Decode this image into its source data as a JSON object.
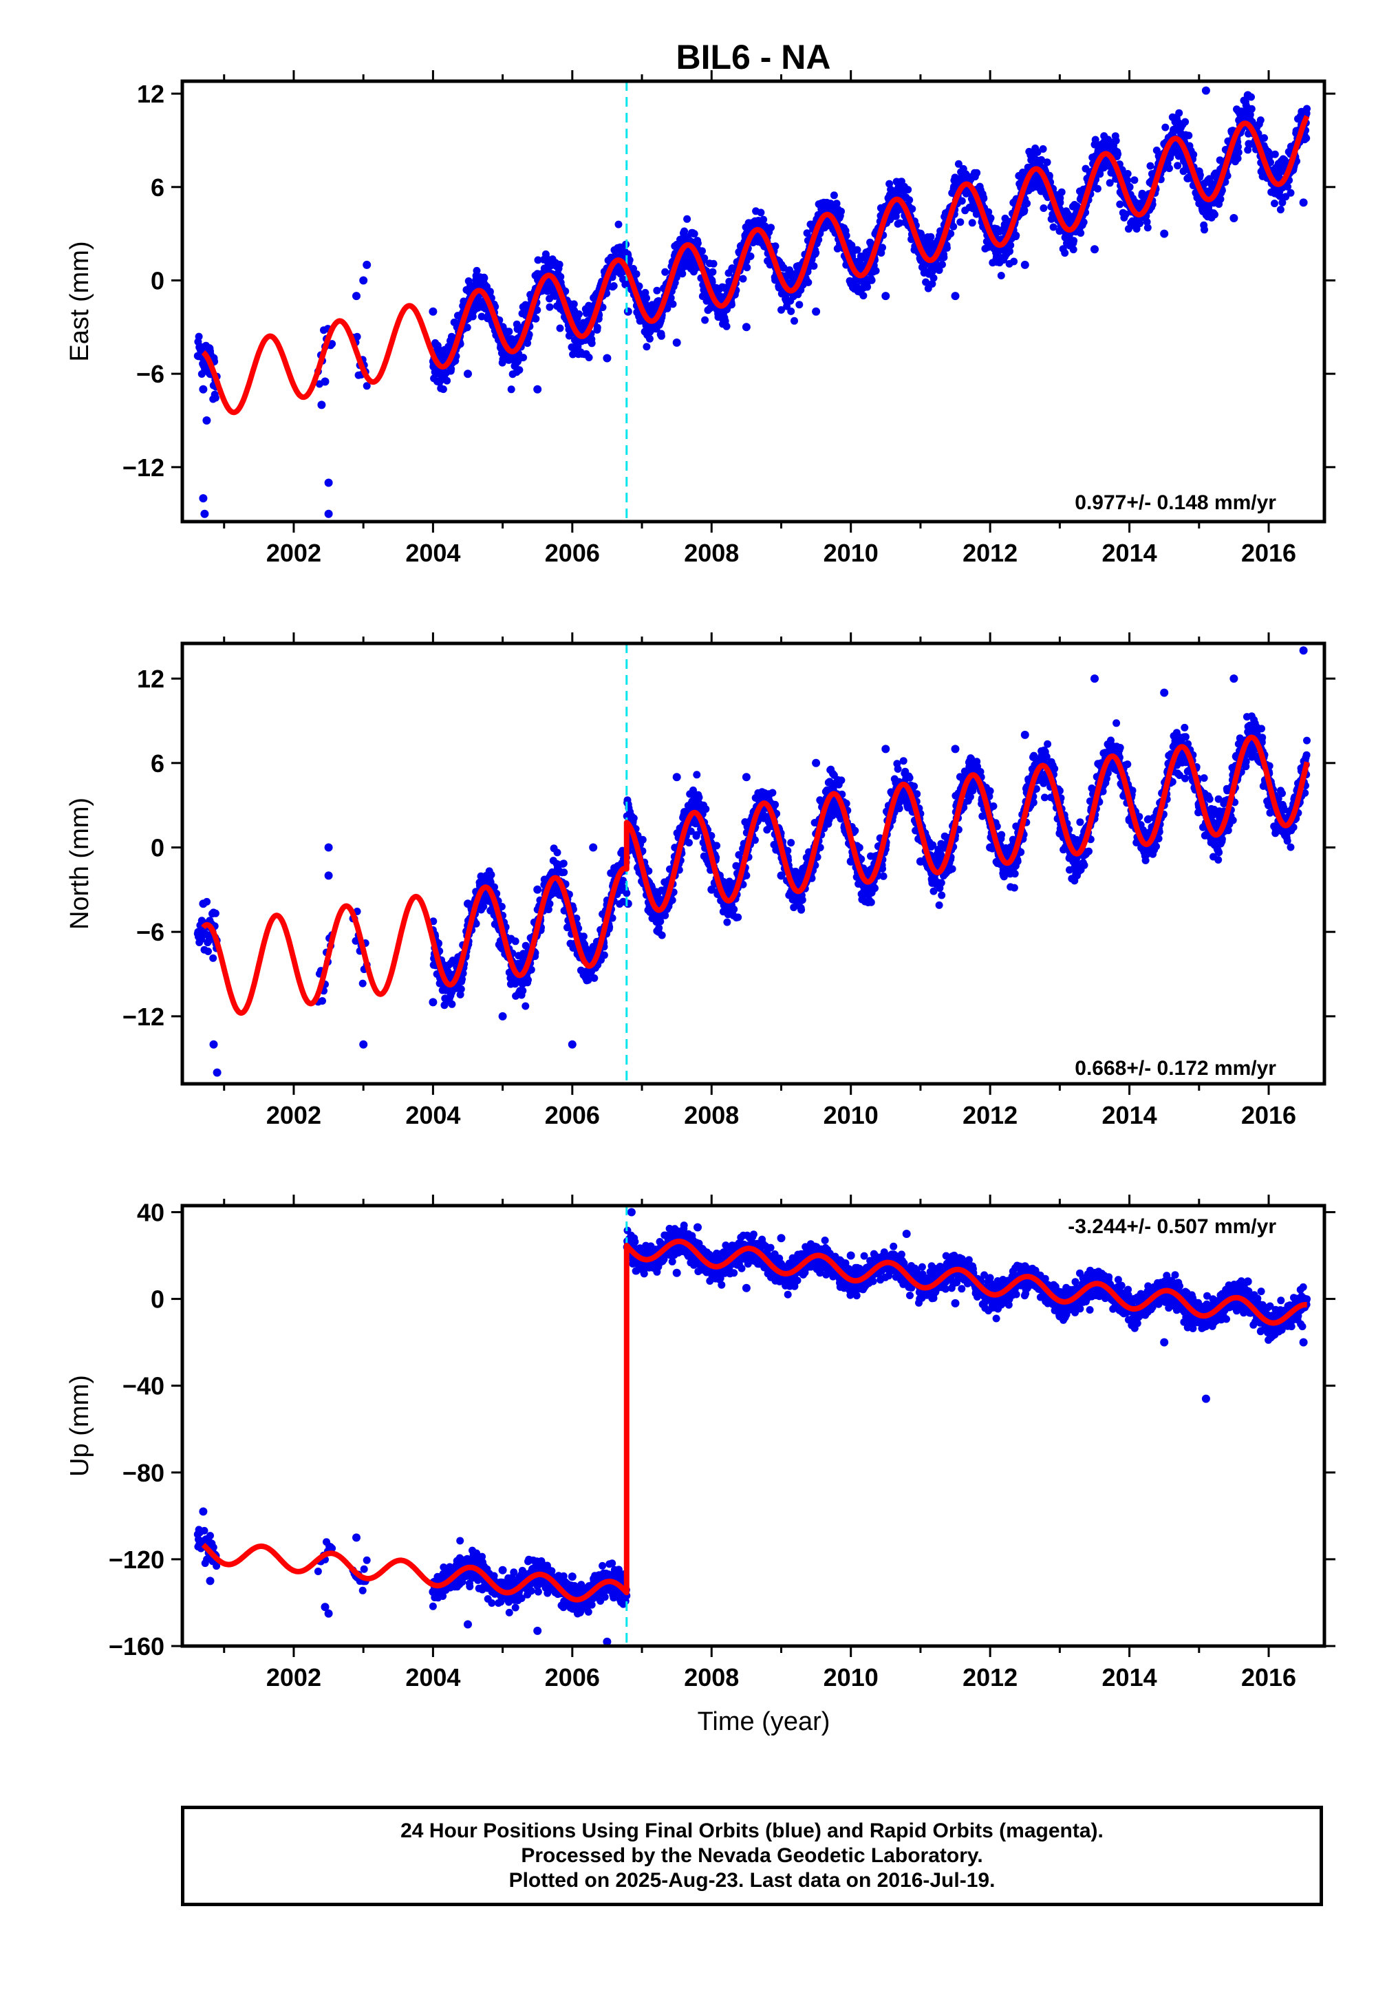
{
  "title": "BIL6 - NA",
  "chart_data": [
    {
      "type": "scatter",
      "component": "East",
      "ylabel": "East (mm)",
      "xlabel": "",
      "xlim": [
        2000.4,
        2016.8
      ],
      "ylim": [
        -15.5,
        12.8
      ],
      "yticks": [
        -12,
        -6,
        0,
        6,
        12
      ],
      "xticks": [
        2002,
        2004,
        2006,
        2008,
        2010,
        2012,
        2014,
        2016
      ],
      "rate_label": "0.977+/- 0.148 mm/yr",
      "event_line_x": 2006.78,
      "grid": false,
      "series": [
        {
          "color": "#0000ee",
          "values": [
            [
              2000.7,
              -7
            ],
            [
              2000.75,
              -9
            ],
            [
              2000.8,
              -6
            ],
            [
              2000.85,
              -5
            ],
            [
              2000.7,
              -14
            ],
            [
              2000.72,
              -15
            ],
            [
              2002.4,
              -8
            ],
            [
              2002.45,
              -6.5
            ],
            [
              2002.5,
              -13
            ],
            [
              2002.5,
              -15
            ],
            [
              2002.9,
              -1
            ],
            [
              2003.0,
              0
            ],
            [
              2003.05,
              1
            ],
            [
              2004.0,
              -2
            ],
            [
              2004.5,
              -6
            ],
            [
              2005.0,
              -3
            ],
            [
              2005.5,
              -7
            ],
            [
              2006.0,
              -3
            ],
            [
              2006.5,
              -5
            ],
            [
              2006.8,
              -2
            ],
            [
              2007.0,
              -2
            ],
            [
              2007.5,
              -4
            ],
            [
              2008.0,
              0
            ],
            [
              2008.5,
              -3
            ],
            [
              2009.0,
              1
            ],
            [
              2009.5,
              -2
            ],
            [
              2010.0,
              2
            ],
            [
              2010.5,
              -1
            ],
            [
              2011.0,
              3
            ],
            [
              2011.5,
              -1
            ],
            [
              2012.0,
              4
            ],
            [
              2012.5,
              1
            ],
            [
              2013.0,
              5
            ],
            [
              2013.5,
              2
            ],
            [
              2014.0,
              6
            ],
            [
              2014.5,
              3
            ],
            [
              2015.0,
              7
            ],
            [
              2015.5,
              4
            ],
            [
              2016.0,
              8
            ],
            [
              2016.5,
              5
            ],
            [
              2015.1,
              12.2
            ],
            [
              2015.7,
              11.9
            ]
          ]
        },
        {
          "color": "#ff0000",
          "trend_at_2000": -7.4,
          "rate": 0.977,
          "annual_amplitude": 2.2,
          "phase_year": 0.4,
          "offset_after_2006.78": 0
        }
      ]
    },
    {
      "type": "scatter",
      "component": "North",
      "ylabel": "North (mm)",
      "xlabel": "",
      "xlim": [
        2000.4,
        2016.8
      ],
      "ylim": [
        -16.8,
        14.5
      ],
      "yticks": [
        -12,
        -6,
        0,
        6,
        12
      ],
      "xticks": [
        2002,
        2004,
        2006,
        2008,
        2010,
        2012,
        2014,
        2016
      ],
      "rate_label": "0.668+/- 0.172 mm/yr",
      "event_line_x": 2006.78,
      "grid": false,
      "series": [
        {
          "color": "#0000ee",
          "values": [
            [
              2000.7,
              -4
            ],
            [
              2000.85,
              -14
            ],
            [
              2000.9,
              -16
            ],
            [
              2002.5,
              0
            ],
            [
              2002.5,
              -2
            ],
            [
              2003.0,
              -14
            ],
            [
              2004.0,
              -11
            ],
            [
              2004.5,
              -4
            ],
            [
              2005.0,
              -12
            ],
            [
              2005.5,
              -3
            ],
            [
              2006.0,
              -14
            ],
            [
              2006.3,
              0
            ],
            [
              2006.8,
              -4
            ],
            [
              2007.5,
              5
            ],
            [
              2008.0,
              -3
            ],
            [
              2008.5,
              5
            ],
            [
              2009.0,
              -2
            ],
            [
              2009.5,
              6
            ],
            [
              2010.0,
              -1
            ],
            [
              2010.5,
              7
            ],
            [
              2011.0,
              -1
            ],
            [
              2011.5,
              7
            ],
            [
              2012.0,
              0
            ],
            [
              2012.5,
              8
            ],
            [
              2013.0,
              1
            ],
            [
              2013.5,
              12
            ],
            [
              2014.0,
              2
            ],
            [
              2014.5,
              11
            ],
            [
              2015.0,
              3
            ],
            [
              2015.5,
              12
            ],
            [
              2016.0,
              3
            ],
            [
              2016.5,
              14
            ]
          ]
        },
        {
          "color": "#ff0000",
          "trend_at_2000": -9.3,
          "rate": 0.668,
          "annual_amplitude": 3.3,
          "phase_year": 0.5,
          "offset_after_2006.78": 3.3
        }
      ]
    },
    {
      "type": "scatter",
      "component": "Up",
      "ylabel": "Up (mm)",
      "xlabel": "Time (year)",
      "xlim": [
        2000.4,
        2016.8
      ],
      "ylim": [
        -160,
        43
      ],
      "yticks": [
        -160,
        -120,
        -80,
        -40,
        0,
        40
      ],
      "xticks": [
        2002,
        2004,
        2006,
        2008,
        2010,
        2012,
        2014,
        2016
      ],
      "rate_label": "-3.244+/- 0.507 mm/yr",
      "event_line_x": 2006.78,
      "grid": false,
      "series": [
        {
          "color": "#0000ee",
          "values": [
            [
              2000.7,
              -98
            ],
            [
              2000.8,
              -130
            ],
            [
              2002.45,
              -142
            ],
            [
              2002.5,
              -145
            ],
            [
              2002.9,
              -110
            ],
            [
              2003.0,
              -130
            ],
            [
              2004.0,
              -135
            ],
            [
              2004.5,
              -150
            ],
            [
              2005.0,
              -125
            ],
            [
              2005.5,
              -153
            ],
            [
              2006.0,
              -128
            ],
            [
              2006.5,
              -158
            ],
            [
              2006.85,
              40
            ],
            [
              2007.5,
              12
            ],
            [
              2007.8,
              33
            ],
            [
              2008.5,
              5
            ],
            [
              2009.0,
              28
            ],
            [
              2010.0,
              20
            ],
            [
              2010.8,
              30
            ],
            [
              2011.5,
              -2
            ],
            [
              2012.5,
              15
            ],
            [
              2013.0,
              -8
            ],
            [
              2014.0,
              -2
            ],
            [
              2014.5,
              -20
            ],
            [
              2015.1,
              -46
            ],
            [
              2015.7,
              8
            ],
            [
              2016.5,
              -20
            ]
          ]
        },
        {
          "color": "#ff0000",
          "trend_at_2000": -114,
          "rate": -3.244,
          "annual_amplitude": 5,
          "phase_year": 0.3,
          "offset_after_2006.78": 160
        }
      ]
    }
  ],
  "footer": {
    "line1": "24 Hour Positions Using Final Orbits (blue) and Rapid Orbits (magenta).",
    "line2": "Processed by the Nevada Geodetic Laboratory.",
    "line3": "Plotted on 2025-Aug-23. Last data on 2016-Jul-19."
  }
}
